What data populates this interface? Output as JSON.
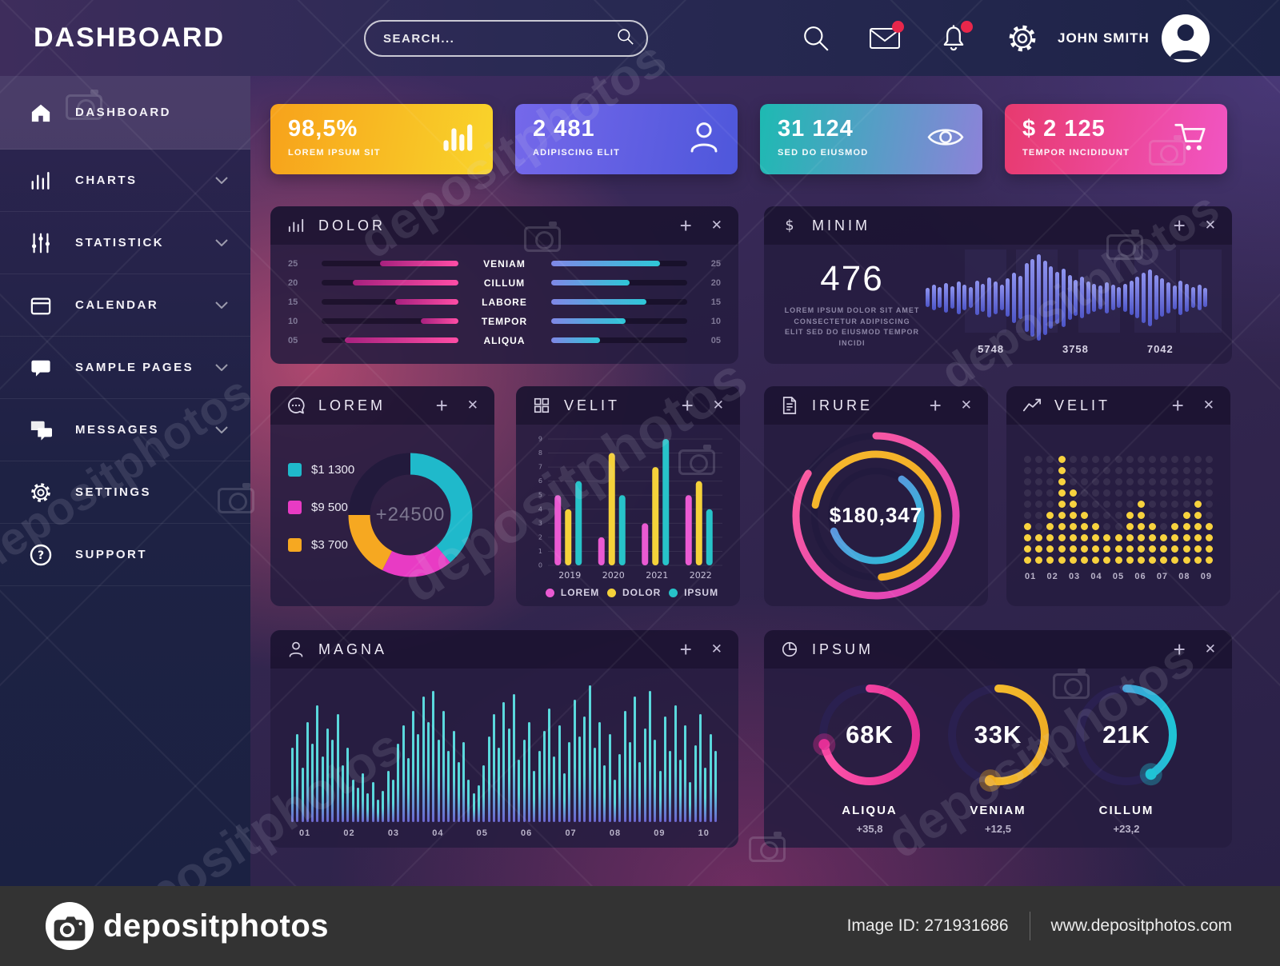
{
  "topbar": {
    "title": "DASHBOARD",
    "search_placeholder": "SEARCH...",
    "user_name": "JOHN SMITH"
  },
  "sidebar": {
    "items": [
      {
        "label": "DASHBOARD",
        "icon": "home",
        "active": true,
        "chevron": false
      },
      {
        "label": "CHARTS",
        "icon": "bar-chart",
        "active": false,
        "chevron": true
      },
      {
        "label": "STATISTICK",
        "icon": "sliders",
        "active": false,
        "chevron": true
      },
      {
        "label": "CALENDAR",
        "icon": "calendar",
        "active": false,
        "chevron": true
      },
      {
        "label": "SAMPLE PAGES",
        "icon": "chat-bubble",
        "active": false,
        "chevron": true
      },
      {
        "label": "MESSAGES",
        "icon": "chat-bubbles",
        "active": false,
        "chevron": true
      },
      {
        "label": "SETTINGS",
        "icon": "gear",
        "active": false,
        "chevron": false
      },
      {
        "label": "SUPPORT",
        "icon": "help",
        "active": false,
        "chevron": false
      }
    ]
  },
  "stat_cards": [
    {
      "value": "98,5%",
      "label": "LOREM IPSUM SIT",
      "icon": "bar-chart",
      "gradient_from": "#f7a21b",
      "gradient_to": "#f9d42b"
    },
    {
      "value": "2 481",
      "label": "ADIPISCING ELIT",
      "icon": "user",
      "gradient_from": "#7568ea",
      "gradient_to": "#4e57db"
    },
    {
      "value": "31 124",
      "label": "SED DO EIUSMOD",
      "icon": "eye",
      "gradient_from": "#1dbab2",
      "gradient_to": "#8d82d9"
    },
    {
      "value": "$ 2 125",
      "label": "TEMPOR INCIDIDUNT",
      "icon": "cart",
      "gradient_from": "#e73a6e",
      "gradient_to": "#f155c3"
    }
  ],
  "panel_controls": {
    "add": "+",
    "close": "✕"
  },
  "panels": {
    "dolor": {
      "title": "DOLOR",
      "icon": "bar-lines"
    },
    "minim": {
      "title": "MINIM",
      "icon": "dollar",
      "big_value": "476",
      "description": "LOREM IPSUM DOLOR SIT AMET CONSECTETUR ADIPISCING ELIT SED DO EIUSMOD TEMPOR INCIDI"
    },
    "lorem": {
      "title": "LOREM",
      "icon": "chat"
    },
    "velit_bars": {
      "title": "VELIT",
      "icon": "grid"
    },
    "irure": {
      "title": "IRURE",
      "icon": "document"
    },
    "velit_dots": {
      "title": "VELIT",
      "icon": "trend"
    },
    "magna": {
      "title": "MAGNA",
      "icon": "person"
    },
    "ipsum": {
      "title": "IPSUM",
      "icon": "pie"
    }
  },
  "chart_data": {
    "dolor": {
      "type": "bar",
      "orientation": "horizontal-double",
      "rows": [
        {
          "tick": "25",
          "left_pct": 57,
          "label": "VENIAM",
          "right_pct": 80
        },
        {
          "tick": "20",
          "left_pct": 77,
          "label": "CILLUM",
          "right_pct": 58
        },
        {
          "tick": "15",
          "left_pct": 46,
          "label": "LABORE",
          "right_pct": 70
        },
        {
          "tick": "10",
          "left_pct": 27,
          "label": "TEMPOR",
          "right_pct": 55
        },
        {
          "tick": "05",
          "left_pct": 83,
          "label": "ALIQUA",
          "right_pct": 36
        }
      ],
      "left_bar_colors": [
        "#a6217e",
        "#ff4da6"
      ],
      "right_bar_colors": [
        "#8087e6",
        "#2ec8d8"
      ]
    },
    "minim": {
      "type": "bar",
      "style": "waveform-centered",
      "x_labels": [
        "5748",
        "3758",
        "7042"
      ],
      "bar_heights_pct": [
        22,
        30,
        24,
        34,
        26,
        38,
        30,
        24,
        40,
        32,
        46,
        38,
        30,
        44,
        58,
        50,
        80,
        90,
        100,
        86,
        72,
        60,
        68,
        52,
        42,
        48,
        38,
        32,
        28,
        36,
        30,
        24,
        32,
        40,
        48,
        58,
        66,
        52,
        44,
        36,
        28,
        40,
        32,
        24,
        30,
        22
      ],
      "bar_colors": [
        "#8f95f0",
        "#4d55c8"
      ]
    },
    "lorem_donut": {
      "type": "pie",
      "style": "donut",
      "center_label": "+24500",
      "segments": [
        {
          "label": "$1 1300",
          "color": "#1fb9cb",
          "degrees": 140
        },
        {
          "label": "$9 500",
          "color": "#e83bc4",
          "degrees": 67
        },
        {
          "label": "$3 700",
          "color": "#f6a821",
          "degrees": 63
        }
      ],
      "track_color": "#221a3c"
    },
    "velit_grouped_bars": {
      "type": "bar",
      "categories": [
        "2019",
        "2020",
        "2021",
        "2022"
      ],
      "series": [
        {
          "name": "LOREM",
          "color": "#ea5ad2",
          "values": [
            5,
            2,
            3,
            5
          ]
        },
        {
          "name": "DOLOR",
          "color": "#f5d23a",
          "values": [
            4,
            8,
            7,
            6
          ]
        },
        {
          "name": "IPSUM",
          "color": "#27c3c9",
          "values": [
            6,
            5,
            9,
            4
          ]
        }
      ],
      "ylim": [
        0,
        9
      ],
      "grid": true,
      "legend_position": "bottom"
    },
    "irure_arcs": {
      "type": "radial",
      "center_label": "$180,347",
      "arcs": [
        {
          "radius_rank": 1,
          "start_deg": 0,
          "sweep_deg": 302,
          "color_from": "#ff5f9b",
          "color_to": "#dc40bb"
        },
        {
          "radius_rank": 2,
          "start_deg": -80,
          "sweep_deg": 255,
          "color_from": "#f6b92e",
          "color_to": "#f0a722"
        },
        {
          "radius_rank": 3,
          "start_deg": 35,
          "sweep_deg": 215,
          "color_from": "#7583e2",
          "color_to": "#23c3d6"
        }
      ],
      "track_color": "#221a3e"
    },
    "velit_dot_histogram": {
      "type": "dot-histogram",
      "x_labels": [
        "01",
        "02",
        "03",
        "04",
        "05",
        "06",
        "07",
        "08",
        "09"
      ],
      "column_heights": [
        4,
        3,
        5,
        10,
        7,
        5,
        4,
        3,
        3,
        5,
        6,
        4,
        3,
        4,
        5,
        6,
        4
      ],
      "grid_rows": 10,
      "dot_color": "#f7d23e",
      "grid_dot_color": "rgba(255,255,255,0.08)"
    },
    "magna_bars": {
      "type": "bar",
      "style": "dense",
      "x_labels": [
        "01",
        "02",
        "03",
        "04",
        "05",
        "06",
        "07",
        "08",
        "09",
        "10"
      ],
      "bar_heights_pct": [
        52,
        62,
        38,
        70,
        55,
        82,
        46,
        66,
        58,
        76,
        40,
        52,
        30,
        24,
        34,
        20,
        28,
        16,
        22,
        36,
        30,
        55,
        68,
        45,
        78,
        62,
        88,
        70,
        92,
        58,
        78,
        50,
        64,
        42,
        56,
        30,
        20,
        26,
        40,
        60,
        76,
        52,
        84,
        66,
        90,
        44,
        58,
        70,
        36,
        50,
        64,
        80,
        46,
        68,
        34,
        56,
        86,
        60,
        74,
        96,
        52,
        70,
        40,
        62,
        30,
        48,
        78,
        56,
        88,
        42,
        66,
        92,
        58,
        36,
        74,
        50,
        82,
        44,
        68,
        28,
        54,
        76,
        38,
        62,
        50
      ],
      "bar_colors": [
        "#5ad8dc",
        "#6c66cf"
      ]
    },
    "ipsum_gauges": {
      "type": "gauge",
      "items": [
        {
          "value": "68K",
          "label": "ALIQUA",
          "delta": "+35,8",
          "sweep_deg": 258,
          "color_from": "#ff55aa",
          "color_to": "#e42f96"
        },
        {
          "value": "33K",
          "label": "VENIAM",
          "delta": "+12,5",
          "sweep_deg": 190,
          "color_from": "#f8c733",
          "color_to": "#efae25"
        },
        {
          "value": "21K",
          "label": "CILLUM",
          "delta": "+23,2",
          "sweep_deg": 148,
          "color_from": "#5b7ed9",
          "color_to": "#1fc3d5"
        }
      ],
      "track_color": "#2a2050"
    }
  },
  "footer": {
    "brand": "depositphotos",
    "image_id": "Image ID: 271931686",
    "website": "www.depositphotos.com"
  },
  "watermark_text": "depositphotos"
}
